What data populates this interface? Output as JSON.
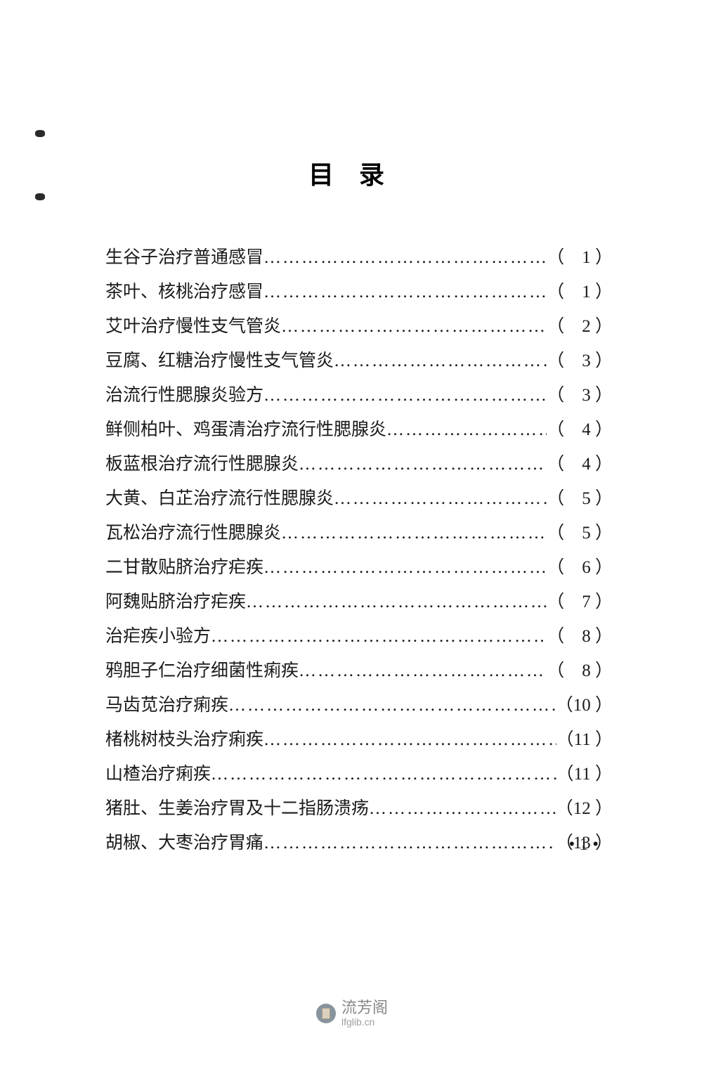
{
  "title": "目录",
  "entries": [
    {
      "text": "生谷子治疗普通感冒",
      "page": "1"
    },
    {
      "text": "茶叶、核桃治疗感冒",
      "page": "1"
    },
    {
      "text": "艾叶治疗慢性支气管炎",
      "page": "2"
    },
    {
      "text": "豆腐、红糖治疗慢性支气管炎",
      "page": "3"
    },
    {
      "text": "治流行性腮腺炎验方",
      "page": "3"
    },
    {
      "text": "鲜侧柏叶、鸡蛋清治疗流行性腮腺炎",
      "page": "4"
    },
    {
      "text": "板蓝根治疗流行性腮腺炎",
      "page": "4"
    },
    {
      "text": "大黄、白芷治疗流行性腮腺炎",
      "page": "5"
    },
    {
      "text": "瓦松治疗流行性腮腺炎",
      "page": "5"
    },
    {
      "text": "二甘散贴脐治疗疟疾",
      "page": "6"
    },
    {
      "text": "阿魏贴脐治疗疟疾",
      "page": "7"
    },
    {
      "text": "治疟疾小验方",
      "page": "8"
    },
    {
      "text": "鸦胆子仁治疗细菌性痢疾",
      "page": "8"
    },
    {
      "text": "马齿苋治疗痢疾",
      "page": "10"
    },
    {
      "text": "楮桃树枝头治疗痢疾",
      "page": "11"
    },
    {
      "text": "山楂治疗痢疾",
      "page": "11"
    },
    {
      "text": "猪肚、生姜治疗胃及十二指肠溃疡",
      "page": "12"
    },
    {
      "text": "胡椒、大枣治疗胃痛",
      "page": "13"
    }
  ],
  "pageNumber": "1",
  "pageNumberPrefix": "• ",
  "pageNumberSuffix": " •",
  "watermark": {
    "name": "流芳阁",
    "url": "lfglib.cn"
  },
  "dots": "………………………………………………………………………………",
  "openParen": "（",
  "closeParen": "）",
  "colors": {
    "background": "#ffffff",
    "text": "#1a1a1a",
    "watermarkText": "#4a4a4a",
    "watermarkUrl": "#6a6a6a"
  },
  "typography": {
    "titleFontSize": 36,
    "bodyFontSize": 25,
    "lineHeight": 49,
    "fontFamily": "SimSun"
  }
}
